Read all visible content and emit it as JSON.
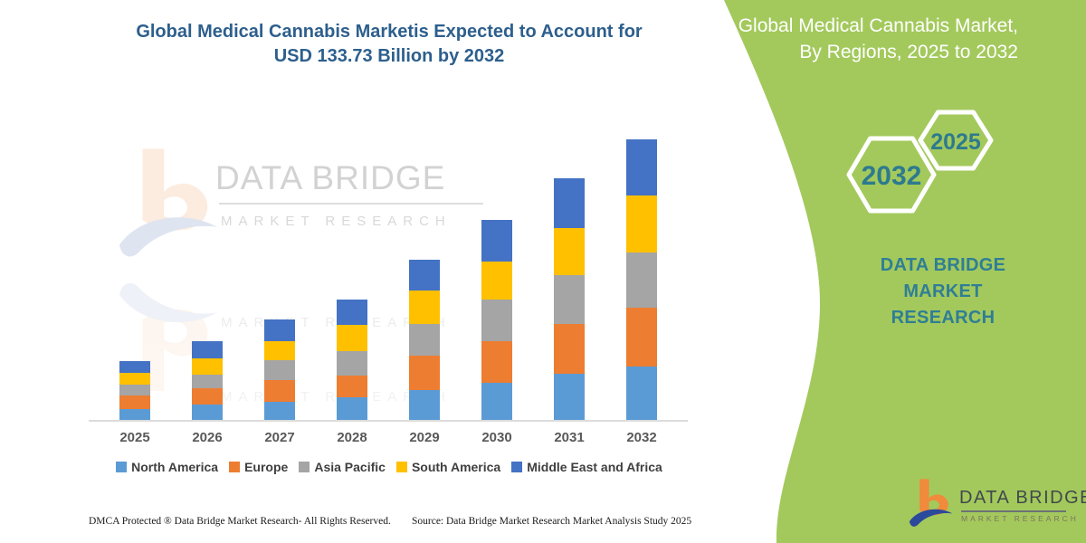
{
  "main_title": {
    "line1": "Global Medical Cannabis Marketis Expected to Account for",
    "line2": "USD 133.73 Billion by 2032",
    "color": "#2d5f8d"
  },
  "watermark": {
    "brand": "DATA BRIDGE",
    "sub": "MARKET RESEARCH"
  },
  "chart_data": {
    "type": "bar",
    "stacked": true,
    "title": "Global Medical Cannabis Market, By Regions, 2025 to 2032",
    "unit": "USD Billion",
    "categories": [
      "2025",
      "2026",
      "2027",
      "2028",
      "2029",
      "2030",
      "2031",
      "2032"
    ],
    "series": [
      {
        "name": "North America",
        "color": "#5B9BD5",
        "values": [
          5.5,
          7.7,
          9.2,
          11.4,
          14.8,
          18.2,
          22.2,
          25.8
        ]
      },
      {
        "name": "Europe",
        "color": "#ED7D31",
        "values": [
          6.6,
          7.6,
          10.0,
          10.0,
          16.1,
          19.8,
          23.7,
          28.0
        ]
      },
      {
        "name": "Asia Pacific",
        "color": "#A5A5A5",
        "values": [
          5.0,
          6.5,
          9.5,
          11.9,
          15.1,
          19.7,
          23.3,
          26.1
        ]
      },
      {
        "name": "South America",
        "color": "#FFC000",
        "values": [
          5.6,
          8.0,
          9.3,
          12.5,
          15.8,
          17.9,
          22.2,
          27.2
        ]
      },
      {
        "name": "Middle East and Africa",
        "color": "#4472C4",
        "values": [
          5.9,
          8.0,
          10.3,
          11.9,
          14.6,
          20.0,
          23.7,
          26.63
        ]
      }
    ],
    "ylim": [
      0,
      140
    ],
    "grid": false,
    "value_axis_visible": false,
    "legend_position": "bottom",
    "highlight_total_2032": 133.73
  },
  "footer": {
    "left": "DMCA Protected ® Data Bridge Market Research-  All Rights Reserved.",
    "right": "Source: Data Bridge Market Research  Market Analysis Study 2025"
  },
  "side_panel": {
    "bg_color": "#a3c95c",
    "title_line1": "Global Medical Cannabis Market,",
    "title_line2": "By Regions, 2025 to 2032",
    "hex_large_year": "2032",
    "hex_small_year": "2025",
    "brand_line1": "DATA BRIDGE MARKET",
    "brand_line2": "RESEARCH",
    "text_color": "#2f7e95"
  },
  "logo": {
    "name": "DATA BRIDGE",
    "sub": "MARKET RESEARCH"
  }
}
